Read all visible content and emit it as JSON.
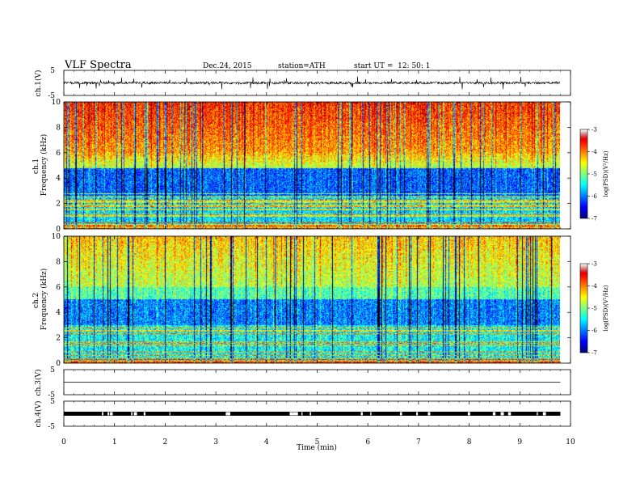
{
  "header": {
    "title": "VLF Spectra",
    "date": "Dec.24, 2015",
    "station": "station=ATH",
    "start": "start UT =  12: 50: 1"
  },
  "chart_data": [
    {
      "type": "line",
      "name": "ch1-waveform",
      "ylabel": "ch.1(V)",
      "ylim": [
        -5,
        5
      ],
      "yticks": [
        "5",
        "-5"
      ],
      "level": 0
    },
    {
      "type": "heatmap",
      "name": "ch1-spectrogram",
      "ylabel": "ch.1\nFrequency (kHz)",
      "ylabel_lines": [
        "ch.1",
        "Frequency (kHz)"
      ],
      "ylim": [
        0,
        10
      ],
      "yticks": [
        "0",
        "2",
        "4",
        "6",
        "8",
        "10"
      ],
      "colorbar": {
        "label": "log(PSD)(V²/Hz)",
        "range": [
          -7,
          -3
        ],
        "ticks": [
          "-3",
          "-4",
          "-5",
          "-6",
          "-7"
        ]
      }
    },
    {
      "type": "heatmap",
      "name": "ch2-spectrogram",
      "ylabel": "ch.2\nFrequency (kHz)",
      "ylabel_lines": [
        "ch.2",
        "Frequency (kHz)"
      ],
      "ylim": [
        0,
        10
      ],
      "yticks": [
        "0",
        "2",
        "4",
        "6",
        "8",
        "10"
      ],
      "colorbar": {
        "label": "log(PSD)(V²/Hz)",
        "range": [
          -7,
          -3
        ],
        "ticks": [
          "-3",
          "-4",
          "-5",
          "-6",
          "-7"
        ]
      }
    },
    {
      "type": "line",
      "name": "ch3-waveform",
      "ylabel": "ch.3(V)",
      "ylim": [
        -5,
        5
      ],
      "yticks": [
        "5",
        "-5"
      ],
      "level": 0
    },
    {
      "type": "line",
      "name": "ch4-waveform",
      "ylabel": "ch.4(V)",
      "ylim": [
        -5,
        5
      ],
      "yticks": [
        "5",
        "-5"
      ],
      "level": 0
    }
  ],
  "xaxis": {
    "label": "Time (min)",
    "range": [
      0,
      10
    ],
    "ticks": [
      "0",
      "1",
      "2",
      "3",
      "4",
      "5",
      "6",
      "7",
      "8",
      "9",
      "10"
    ],
    "data_end": 9.8
  },
  "colors": {
    "axis": "#000000",
    "background": "#ffffff"
  }
}
